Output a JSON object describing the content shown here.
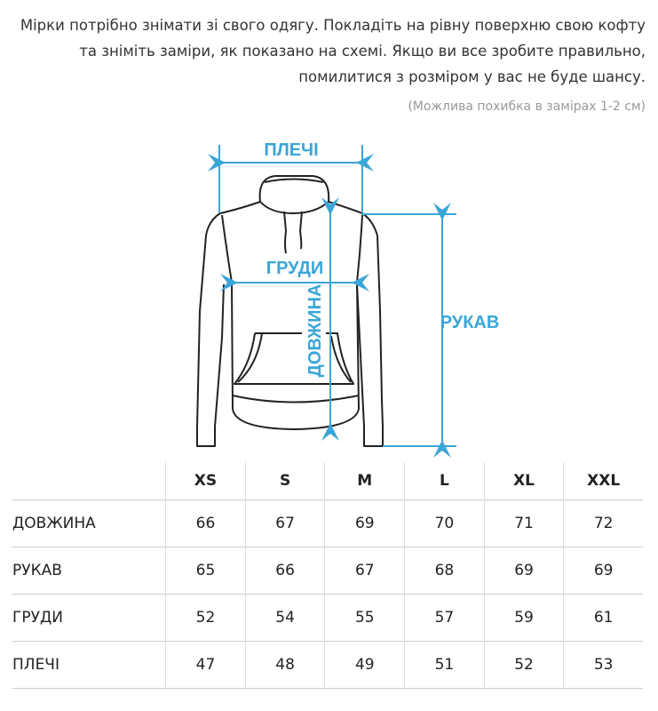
{
  "intro_text": "Мірки потрібно знімати зі свого одягу. Покладіть на рівну поверхню свою кофту та зніміть заміри, як показано на схемі. Якщо ви все зробите правильно, помилитися з розміром у вас не буде шансу.",
  "note": "(Можлива похибка в замірах 1-2 см)",
  "diagram": {
    "accent_color": "#3aa6d8",
    "labels": {
      "shoulders": "ПЛЕЧІ",
      "chest": "ГРУДИ",
      "length": "ДОВЖИНА",
      "sleeve": "РУКАВ"
    }
  },
  "table": {
    "sizes": [
      "XS",
      "S",
      "M",
      "L",
      "XL",
      "XXL"
    ],
    "rows": [
      {
        "label": "ДОВЖИНА",
        "values": [
          "66",
          "67",
          "69",
          "70",
          "71",
          "72"
        ]
      },
      {
        "label": "РУКАВ",
        "values": [
          "65",
          "66",
          "67",
          "68",
          "69",
          "69"
        ]
      },
      {
        "label": "ГРУДИ",
        "values": [
          "52",
          "54",
          "55",
          "57",
          "59",
          "61"
        ]
      },
      {
        "label": "ПЛЕЧІ",
        "values": [
          "47",
          "48",
          "49",
          "51",
          "52",
          "53"
        ]
      }
    ]
  }
}
